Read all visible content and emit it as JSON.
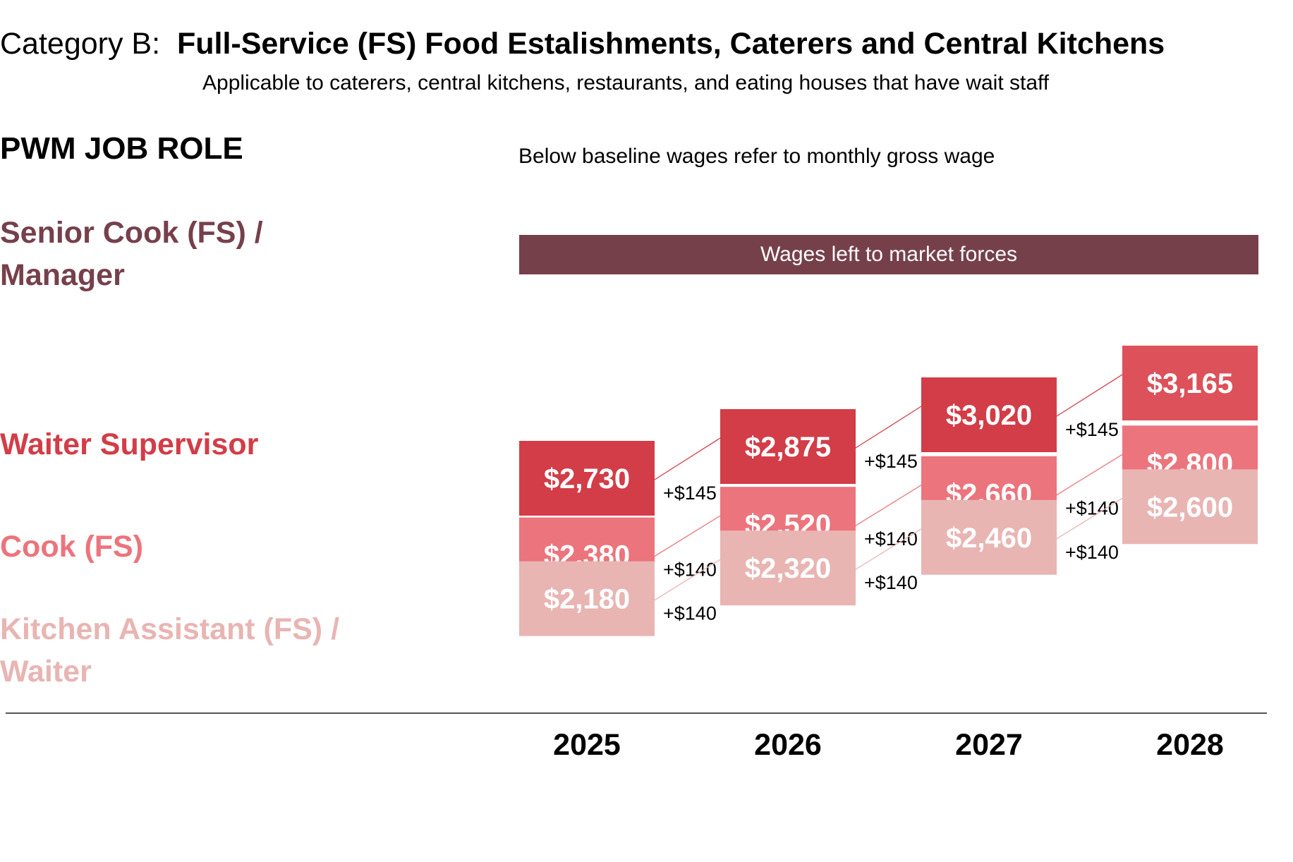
{
  "header": {
    "title_prefix": "Category B:",
    "title_main": "Full-Service (FS) Food Estalishments, Caterers and Central Kitchens",
    "subtitle": "Applicable to caterers, central kitchens, restaurants, and eating houses that have wait staff"
  },
  "roles_header": "PWM JOB ROLE",
  "chart_note": "Below baseline wages refer to monthly gross wage",
  "market_banner": {
    "label": "Wages left to market forces",
    "color": "#76404b"
  },
  "roles": [
    {
      "label": "Senior Cook (FS) / Manager",
      "color": "#76404b"
    },
    {
      "label": "Waiter Supervisor",
      "color": "#d23d47"
    },
    {
      "label": "Cook (FS)",
      "color": "#ec747c"
    },
    {
      "label": "Kitchen Assistant (FS) / Waiter",
      "color": "#e8b5b3"
    }
  ],
  "chart_data": {
    "type": "bar",
    "title": "Full-Service (FS) Food Estalishments, Caterers and Central Kitchens",
    "categories": [
      "2025",
      "2026",
      "2027",
      "2028"
    ],
    "series": [
      {
        "name": "Waiter Supervisor",
        "color_2025_2027": "#d23d47",
        "color_2028": "#dd515a",
        "values": [
          2730,
          2875,
          3020,
          3165
        ],
        "labels": [
          "$2,730",
          "$2,875",
          "$3,020",
          "$3,165"
        ],
        "increments": [
          "+$145",
          "+$145",
          "+$145"
        ]
      },
      {
        "name": "Cook (FS)",
        "color_2025_2027": "#ec747c",
        "color_2028": "#ec747c",
        "values": [
          2380,
          2520,
          2660,
          2800
        ],
        "labels": [
          "$2,380",
          "$2,520",
          "$2,660",
          "$2,800"
        ],
        "increments": [
          "+$140",
          "+$140",
          "+$140"
        ]
      },
      {
        "name": "Kitchen Assistant (FS) / Waiter",
        "color_2025_2027": "#e8b5b3",
        "color_2028": "#e8b5b3",
        "values": [
          2180,
          2320,
          2460,
          2600
        ],
        "labels": [
          "$2,180",
          "$2,320",
          "$2,460",
          "$2,600"
        ],
        "increments": [
          "+$140",
          "+$140",
          "+$140"
        ]
      }
    ]
  }
}
